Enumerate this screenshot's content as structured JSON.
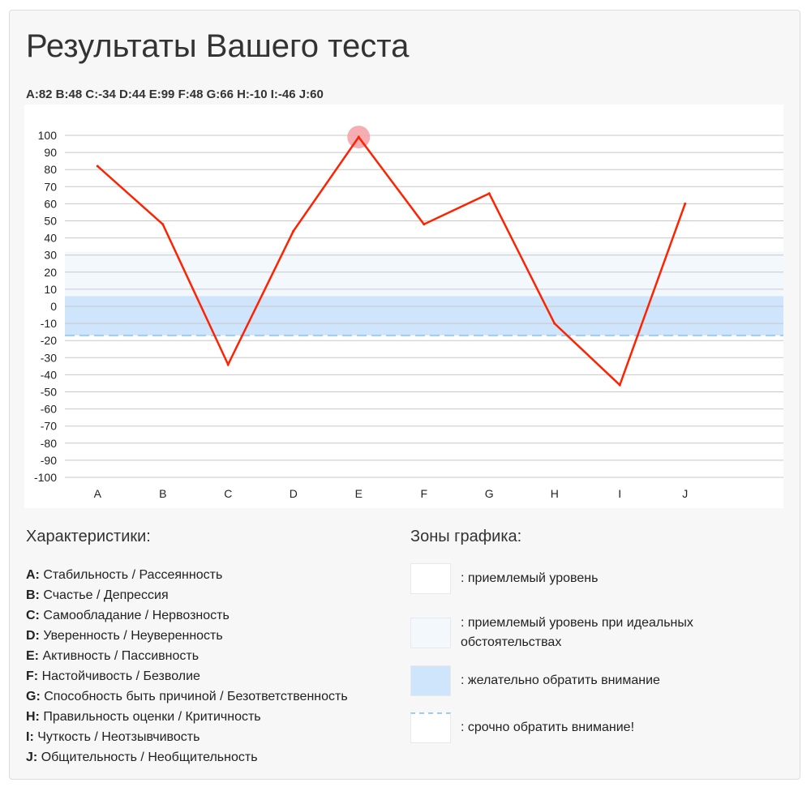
{
  "page": {
    "title": "Результаты Вашего теста",
    "summary": "A:82 B:48 C:-34 D:44 E:99 F:48 G:66 H:-10 I:-46 J:60"
  },
  "chart_data": {
    "type": "line",
    "categories": [
      "A",
      "B",
      "C",
      "D",
      "E",
      "F",
      "G",
      "H",
      "I",
      "J"
    ],
    "values": [
      82,
      48,
      -34,
      44,
      99,
      48,
      66,
      -10,
      -46,
      60
    ],
    "ylim": [
      -100,
      100
    ],
    "yticks": [
      100,
      90,
      80,
      70,
      60,
      50,
      40,
      30,
      20,
      10,
      0,
      -10,
      -20,
      -30,
      -40,
      -50,
      -60,
      -70,
      -80,
      -90,
      -100
    ],
    "line_color": "#ff2200",
    "highlight_point": "E",
    "highlight_color": "#f5a0a5",
    "grid": true,
    "bands": [
      {
        "from": 6,
        "to": 32,
        "color": "#f3f8fd"
      },
      {
        "from": -17,
        "to": 6,
        "color": "#cfe5fb"
      }
    ],
    "dashed_line": {
      "value": -17,
      "color": "#99ccf7"
    }
  },
  "characteristics": {
    "title": "Характеристики:",
    "items": [
      {
        "key": "A:",
        "text": "Стабильность / Рассеянность"
      },
      {
        "key": "B:",
        "text": "Счастье / Депрессия"
      },
      {
        "key": "C:",
        "text": "Самообладание / Нервозность"
      },
      {
        "key": "D:",
        "text": "Уверенность / Неуверенность"
      },
      {
        "key": "E:",
        "text": "Активность / Пассивность"
      },
      {
        "key": "F:",
        "text": "Настойчивость / Безволие"
      },
      {
        "key": "G:",
        "text": "Способность быть причиной / Безответственность"
      },
      {
        "key": "H:",
        "text": "Правильность оценки / Критичность"
      },
      {
        "key": "I:",
        "text": "Чуткость / Неотзывчивость"
      },
      {
        "key": "J:",
        "text": "Общительность / Необщительность"
      }
    ]
  },
  "zones": {
    "title": "Зоны графика:",
    "items": [
      {
        "text": ": приемлемый уровень",
        "color": "#ffffff"
      },
      {
        "text": ": приемлемый уровень при идеальных обстоятельствах",
        "color": "#f3f8fd"
      },
      {
        "text": ": желательно обратить внимание",
        "color": "#cfe5fb"
      },
      {
        "text": ": срочно обратить внимание!",
        "color": "#ffffff",
        "dash_color": "#99ccf7"
      }
    ]
  }
}
